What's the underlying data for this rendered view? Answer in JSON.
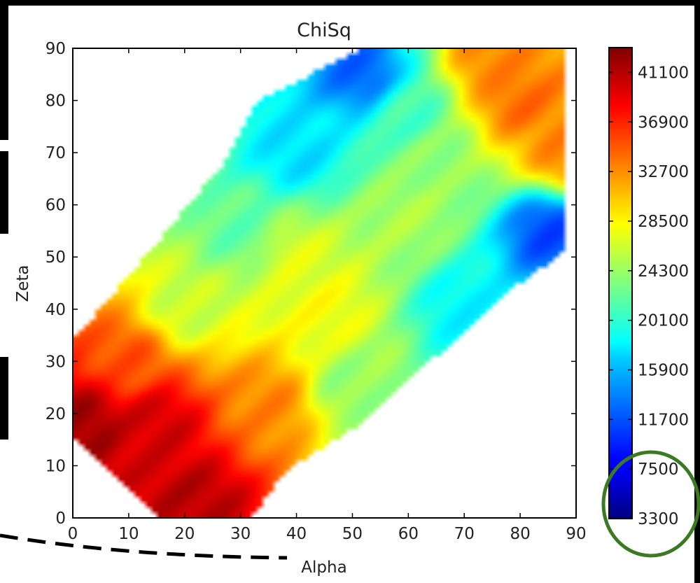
{
  "chart_data": {
    "type": "heatmap",
    "title": "ChiSq",
    "xlabel": "Alpha",
    "ylabel": "Zeta",
    "xlim": [
      0,
      90
    ],
    "ylim": [
      0,
      90
    ],
    "x_ticks": [
      "0",
      "10",
      "20",
      "30",
      "40",
      "50",
      "60",
      "70",
      "80",
      "90"
    ],
    "y_ticks": [
      "0",
      "10",
      "20",
      "30",
      "40",
      "50",
      "60",
      "70",
      "80",
      "90"
    ],
    "colorbar": {
      "colormap": "jet",
      "range": [
        3300,
        43200
      ],
      "ticks": [
        "3300",
        "7500",
        "11700",
        "15900",
        "20100",
        "24300",
        "28500",
        "32700",
        "36900",
        "41100"
      ]
    },
    "valid_region_vertices_alpha_zeta": [
      [
        0,
        34
      ],
      [
        8,
        44
      ],
      [
        27,
        68
      ],
      [
        33,
        80
      ],
      [
        52,
        90
      ],
      [
        88,
        90
      ],
      [
        88,
        51
      ],
      [
        80,
        45
      ],
      [
        50,
        17
      ],
      [
        38,
        9
      ],
      [
        32,
        0
      ],
      [
        16,
        0
      ],
      [
        0,
        16
      ]
    ],
    "approx_samples_alpha_zeta_chisq": [
      [
        2,
        18,
        42000
      ],
      [
        15,
        18,
        40000
      ],
      [
        22,
        3,
        41000
      ],
      [
        10,
        30,
        35000
      ],
      [
        20,
        40,
        26000
      ],
      [
        30,
        55,
        22000
      ],
      [
        40,
        70,
        17000
      ],
      [
        52,
        85,
        12000
      ],
      [
        60,
        78,
        21000
      ],
      [
        60,
        58,
        25000
      ],
      [
        45,
        40,
        28000
      ],
      [
        35,
        22,
        33000
      ],
      [
        50,
        25,
        24000
      ],
      [
        70,
        40,
        18000
      ],
      [
        85,
        55,
        11000
      ],
      [
        80,
        80,
        34000
      ],
      [
        75,
        88,
        33000
      ],
      [
        88,
        70,
        33000
      ],
      [
        65,
        68,
        24000
      ],
      [
        40,
        50,
        27000
      ]
    ]
  },
  "annotations": {
    "dashed_arc_present": true,
    "colorbar_highlight_circle_color": "#3a7a22"
  }
}
